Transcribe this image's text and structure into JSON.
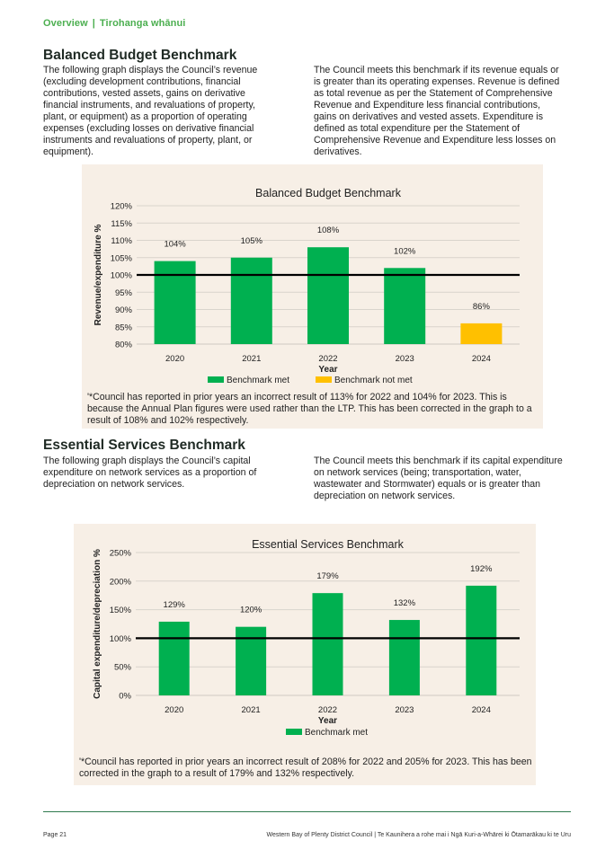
{
  "header": {
    "section": "Overview",
    "separator": "|",
    "section_maori": "Tirohanga whānui"
  },
  "balanced": {
    "title": "Balanced Budget Benchmark",
    "para_left": "The following graph displays the Council’s revenue (excluding development contributions, financial contributions, vested assets, gains on derivative financial instruments, and revaluations of property, plant, or equipment) as a proportion of operating expenses (excluding losses on derivative financial instruments and revaluations of property, plant, or equipment).",
    "para_right": "The Council meets this benchmark if its revenue equals or is greater than its operating expenses. Revenue is defined as total revenue as per the Statement of Comprehensive Revenue and Expenditure less financial contributions, gains on derivatives and vested assets. Expenditure is defined as total expenditure per the Statement of Comprehensive Revenue and Expenditure less losses on derivatives.",
    "note": "'*Council has reported in prior years an incorrect result of 113% for 2022 and 104% for 2023. This is because the Annual Plan figures were used rather than the LTP.  This has been corrected in the graph to a result of 108% and 102% respectively."
  },
  "essential": {
    "title": "Essential Services Benchmark",
    "para_left": "The following graph displays the Council’s capital expenditure on network services as a proportion of depreciation on network services.",
    "para_right": "The Council meets this benchmark if its capital expenditure on network services (being; transportation, water, wastewater and Stormwater) equals or is greater than depreciation on network services.",
    "note": "'*Council has reported in prior years an incorrect result of 208% for 2022 and 205% for 2023. This has been corrected in the graph to a result of 179% and 132% respectively."
  },
  "chart_data": [
    {
      "type": "bar",
      "title": "Balanced Budget Benchmark",
      "xlabel": "Year",
      "ylabel": "Revenue/expenditure %",
      "categories": [
        "2020",
        "2021",
        "2022",
        "2023",
        "2024"
      ],
      "values": [
        104,
        105,
        108,
        102,
        86
      ],
      "data_labels": [
        "104%",
        "105%",
        "108%",
        "102%",
        "86%"
      ],
      "status": [
        "met",
        "met",
        "met",
        "met",
        "not met"
      ],
      "ylim": [
        80,
        120
      ],
      "yticks": [
        80,
        85,
        90,
        95,
        100,
        105,
        110,
        115,
        120
      ],
      "ytick_labels": [
        "80%",
        "85%",
        "90%",
        "95%",
        "100%",
        "105%",
        "110%",
        "115%",
        "120%"
      ],
      "benchmark": 100,
      "grid": true,
      "legend_position": "bottom",
      "legend": [
        {
          "name": "Benchmark met",
          "color": "#00b050"
        },
        {
          "name": "Benchmark not met",
          "color": "#ffc000"
        }
      ],
      "colors": {
        "met": "#00b050",
        "not met": "#ffc000",
        "benchmark_line": "#000000"
      }
    },
    {
      "type": "bar",
      "title": "Essential Services Benchmark",
      "xlabel": "Year",
      "ylabel": "Capital expenditure/depreciation %",
      "categories": [
        "2020",
        "2021",
        "2022",
        "2023",
        "2024"
      ],
      "values": [
        129,
        120,
        179,
        132,
        192
      ],
      "data_labels": [
        "129%",
        "120%",
        "179%",
        "132%",
        "192%"
      ],
      "status": [
        "met",
        "met",
        "met",
        "met",
        "met"
      ],
      "ylim": [
        0,
        250
      ],
      "yticks": [
        0,
        50,
        100,
        150,
        200,
        250
      ],
      "ytick_labels": [
        "0%",
        "50%",
        "100%",
        "150%",
        "200%",
        "250%"
      ],
      "benchmark": 100,
      "grid": true,
      "legend_position": "bottom",
      "legend": [
        {
          "name": "Benchmark met",
          "color": "#00b050"
        }
      ],
      "colors": {
        "met": "#00b050",
        "not met": "#ffc000",
        "benchmark_line": "#000000"
      }
    }
  ],
  "footer": {
    "page": "Page 21",
    "council": "Western Bay of Plenty District Council | Te Kaunihera a rohe mai i Ngā Kuri-a-Whārei ki Ōtamarākau ki te Uru"
  }
}
